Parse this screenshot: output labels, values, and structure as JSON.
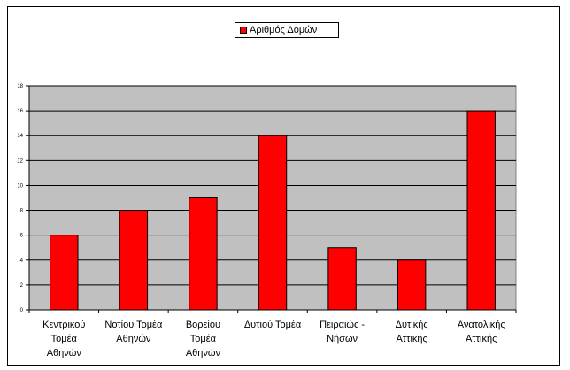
{
  "chart_data": {
    "type": "bar",
    "title": "",
    "categories": [
      [
        "Κεντρικού",
        "Τομέα",
        "Αθηνών"
      ],
      [
        "Νοτίου Τομέα",
        "Αθηνών"
      ],
      [
        "Βορείου",
        "Τομέα",
        "Αθηνών"
      ],
      [
        "Δυτιού Τομέα"
      ],
      [
        "Πειραιώς -",
        "Νήσων"
      ],
      [
        "Δυτικής",
        "Αττικής"
      ],
      [
        "Ανατολικής",
        "Αττικής"
      ]
    ],
    "series": [
      {
        "name": "Αριθμός Δομών",
        "values": [
          6,
          8,
          9,
          14,
          5,
          4,
          16
        ],
        "color": "#ff0000"
      }
    ],
    "ylim": [
      0,
      18
    ],
    "yticks": [
      0,
      2,
      4,
      6,
      8,
      10,
      12,
      14,
      16,
      18
    ],
    "plot_background": "#c0c0c0",
    "grid": true,
    "legend_position": "top-center",
    "xlabel": "",
    "ylabel": ""
  }
}
